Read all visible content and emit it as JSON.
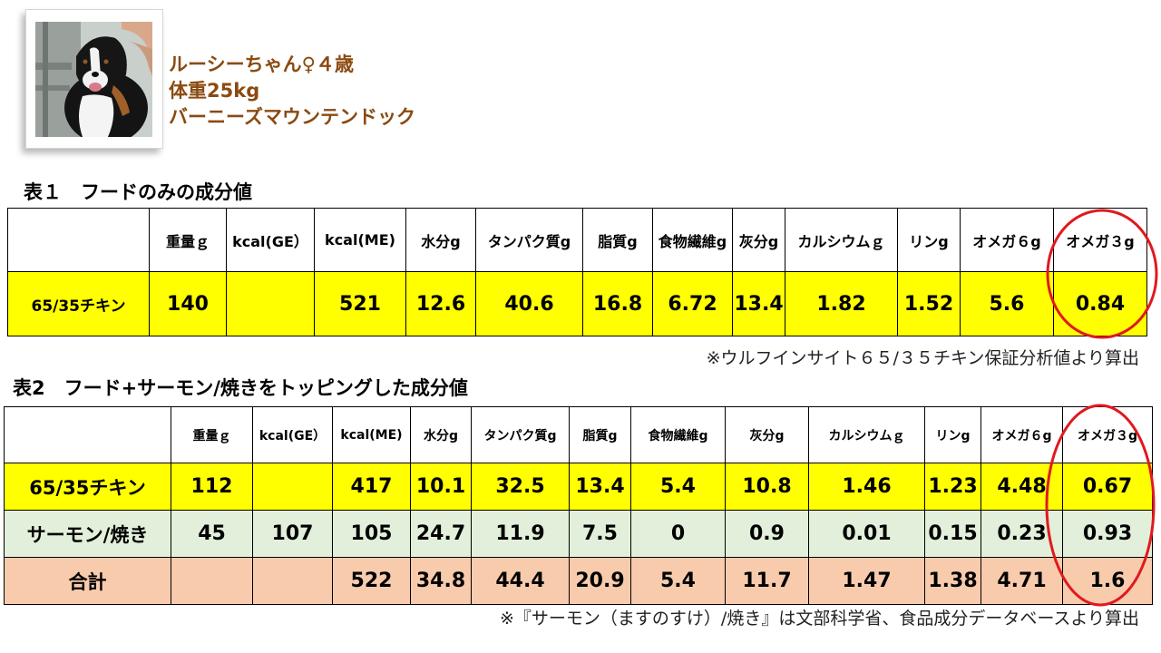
{
  "profile": {
    "name": "ルーシーちゃん♀４歳",
    "weight": "体重25kg",
    "breed": "バーニーズマウンテンドック"
  },
  "colors": {
    "profile_text": "#8a4a10",
    "highlight_yellow": "#ffff00",
    "row_green": "#e2efda",
    "row_salmon": "#f8cbad",
    "oval_red": "#e0191f"
  },
  "table1": {
    "caption": "表１　フードのみの成分値",
    "headers": [
      "",
      "重量ｇ",
      "kcal(GE）",
      "kcal(ME)",
      "水分g",
      "タンパク質g",
      "脂質g",
      "食物繊維g",
      "灰分g",
      "カルシウムｇ",
      "リンg",
      "オメガ６g",
      "オメガ３g"
    ],
    "rows": [
      [
        "65/35チキン",
        "140",
        "",
        "521",
        "12.6",
        "40.6",
        "16.8",
        "6.72",
        "13.4",
        "1.82",
        "1.52",
        "5.6",
        "0.84"
      ]
    ],
    "note": "※ウルフインサイト６５/３５チキン保証分析値より算出"
  },
  "table2": {
    "caption": "表2　フード+サーモン/焼きをトッピングした成分値",
    "headers": [
      "",
      "重量ｇ",
      "kcal(GE）",
      "kcal(ME)",
      "水分g",
      "タンパク質g",
      "脂質g",
      "食物繊維g",
      "灰分g",
      "カルシウムｇ",
      "リンg",
      "オメガ６g",
      "オメガ３g"
    ],
    "rows": [
      [
        "65/35チキン",
        "112",
        "",
        "417",
        "10.1",
        "32.5",
        "13.4",
        "5.4",
        "10.8",
        "1.46",
        "1.23",
        "4.48",
        "0.67"
      ],
      [
        "サーモン/焼き",
        "45",
        "107",
        "105",
        "24.7",
        "11.9",
        "7.5",
        "0",
        "0.9",
        "0.01",
        "0.15",
        "0.23",
        "0.93"
      ],
      [
        "合計",
        "",
        "",
        "522",
        "34.8",
        "44.4",
        "20.9",
        "5.4",
        "11.7",
        "1.47",
        "1.38",
        "4.71",
        "1.6"
      ]
    ],
    "note": "※『サーモン（ますのすけ）/焼き』は文部科学省、食品成分データベースより算出"
  }
}
